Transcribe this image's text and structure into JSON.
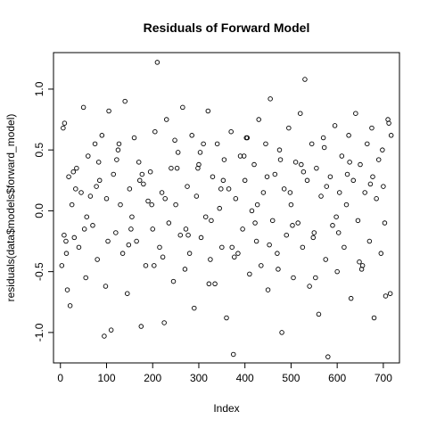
{
  "chart_data": {
    "type": "scatter",
    "title": "Residuals of Forward Model",
    "xlabel": "Index",
    "ylabel": "residuals(data$models$forward_model)",
    "xlim": [
      -15,
      735
    ],
    "ylim": [
      -1.25,
      1.3
    ],
    "x_ticks": [
      0,
      100,
      200,
      300,
      400,
      500,
      600,
      700
    ],
    "x_tick_labels": [
      "0",
      "100",
      "200",
      "300",
      "400",
      "500",
      "600",
      "700"
    ],
    "y_ticks": [
      -1.0,
      -0.5,
      0.0,
      0.5,
      1.0
    ],
    "y_tick_labels": [
      "-1.0",
      "-0.5",
      "0.0",
      "0.5",
      "1.0"
    ],
    "grid": false,
    "legend": "none",
    "marker": "open-circle",
    "series": [
      {
        "x": [
          3,
          6,
          9,
          12,
          15,
          18,
          21,
          25,
          30,
          35,
          40,
          45,
          50,
          55,
          60,
          65,
          70,
          75,
          80,
          85,
          90,
          95,
          100,
          105,
          110,
          115,
          120,
          125,
          130,
          135,
          140,
          145,
          150,
          155,
          160,
          165,
          170,
          175,
          180,
          185,
          190,
          195,
          200,
          205,
          210,
          215,
          220,
          225,
          230,
          235,
          240,
          245,
          250,
          255,
          260,
          265,
          270,
          275,
          280,
          285,
          290,
          295,
          300,
          305,
          310,
          315,
          320,
          325,
          330,
          335,
          340,
          345,
          350,
          355,
          360,
          365,
          370,
          375,
          380,
          385,
          390,
          395,
          400,
          405,
          410,
          415,
          420,
          425,
          430,
          435,
          440,
          445,
          450,
          455,
          460,
          465,
          470,
          475,
          480,
          485,
          490,
          495,
          500,
          505,
          510,
          515,
          520,
          525,
          530,
          535,
          540,
          545,
          550,
          555,
          560,
          565,
          570,
          575,
          580,
          585,
          590,
          595,
          600,
          605,
          610,
          615,
          620,
          625,
          630,
          635,
          640,
          645,
          650,
          655,
          660,
          665,
          670,
          675,
          680,
          685,
          690,
          695,
          700,
          705,
          710,
          715,
          8,
          28,
          52,
          78,
          98,
          122,
          148,
          172,
          198,
          222,
          248,
          272,
          298,
          322,
          348,
          372,
          398,
          422,
          448,
          472,
          498,
          522,
          548,
          572,
          598,
          622,
          648,
          672,
          698,
          712,
          13,
          33,
          57,
          83,
          103,
          127,
          153,
          177,
          203,
          227,
          253,
          277,
          303,
          327,
          353,
          377,
          403,
          427,
          453,
          477,
          503,
          527,
          553,
          577,
          603,
          627,
          653,
          677,
          703,
          717
        ],
        "y": [
          -0.45,
          0.68,
          0.72,
          -0.25,
          -0.65,
          0.28,
          -0.78,
          0.05,
          -0.22,
          0.35,
          -0.3,
          0.15,
          0.85,
          -0.55,
          0.45,
          0.12,
          -0.12,
          0.55,
          -0.4,
          0.25,
          0.62,
          -1.03,
          0.1,
          0.82,
          -0.98,
          0.3,
          -0.18,
          0.5,
          0.05,
          -0.35,
          0.9,
          -0.68,
          0.18,
          -0.05,
          0.6,
          -0.25,
          0.4,
          -0.95,
          0.22,
          -0.45,
          0.08,
          0.32,
          -0.15,
          0.65,
          1.22,
          -0.3,
          0.15,
          -0.92,
          0.75,
          -0.1,
          0.35,
          -0.58,
          0.05,
          0.48,
          -0.2,
          0.85,
          -0.48,
          0.2,
          -0.35,
          0.62,
          -0.8,
          0.12,
          0.38,
          -0.22,
          0.55,
          -0.05,
          0.82,
          -0.4,
          0.28,
          -0.6,
          0.55,
          0.02,
          -0.3,
          0.42,
          -0.88,
          0.18,
          0.65,
          -1.18,
          0.1,
          -0.35,
          0.45,
          -0.15,
          0.25,
          0.6,
          -0.52,
          0.0,
          0.38,
          -0.25,
          0.75,
          -0.45,
          0.15,
          0.55,
          -0.65,
          0.92,
          -0.08,
          0.3,
          -0.35,
          0.5,
          -1.0,
          0.18,
          -0.2,
          0.68,
          0.05,
          -0.55,
          0.4,
          -0.1,
          0.8,
          -0.3,
          1.08,
          0.25,
          -0.62,
          0.55,
          -0.18,
          0.35,
          -0.85,
          0.12,
          0.6,
          -0.4,
          -1.2,
          0.28,
          -0.12,
          0.7,
          -0.5,
          0.15,
          0.45,
          -0.3,
          0.05,
          0.62,
          -0.72,
          0.25,
          0.8,
          -0.08,
          0.38,
          -0.45,
          0.15,
          0.55,
          -0.25,
          0.68,
          -0.88,
          0.1,
          0.42,
          -0.35,
          0.2,
          -0.7,
          0.75,
          -0.68,
          -0.2,
          0.32,
          -0.15,
          0.2,
          -0.62,
          0.42,
          -0.28,
          0.25,
          0.05,
          -0.38,
          0.58,
          -0.15,
          0.35,
          -0.6,
          0.18,
          -0.3,
          0.45,
          -0.1,
          0.28,
          -0.48,
          0.15,
          0.38,
          -0.22,
          0.52,
          -0.05,
          0.3,
          -0.42,
          0.22,
          0.5,
          0.72,
          -0.35,
          0.18,
          -0.05,
          0.4,
          -0.25,
          0.55,
          -0.15,
          0.3,
          -0.45,
          0.1,
          0.35,
          -0.2,
          0.48,
          -0.08,
          0.25,
          -0.38,
          0.6,
          0.05,
          -0.28,
          0.42,
          -0.12,
          0.32,
          -0.55,
          0.2,
          -0.18,
          0.4,
          -0.48,
          0.28,
          -0.1,
          0.62
        ]
      }
    ]
  }
}
